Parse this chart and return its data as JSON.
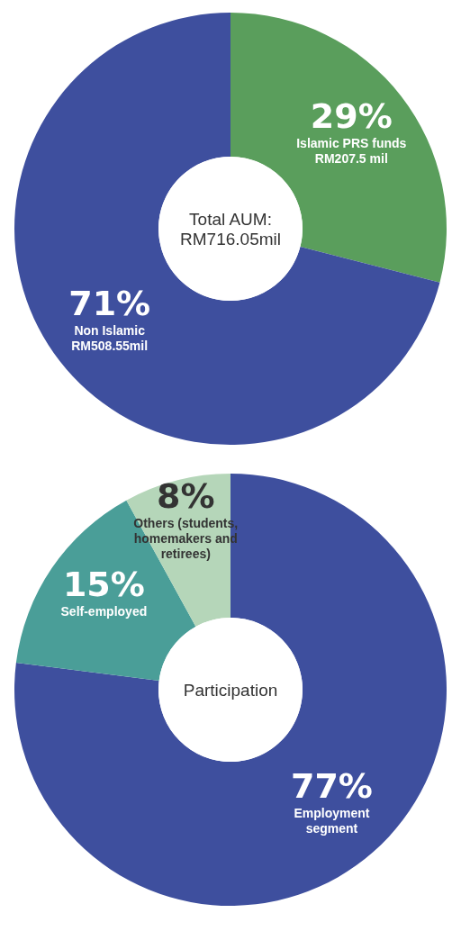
{
  "chart_data": [
    {
      "type": "donut",
      "title": "Total AUM: RM716.05mil",
      "categories": [
        "Islamic PRS funds RM207.5 mil",
        "Non Islamic RM508.55mil"
      ],
      "values": [
        29,
        71
      ],
      "colors": [
        "#5a9e5c",
        "#3e4f9e"
      ],
      "value_labels": [
        "29%",
        "71%"
      ]
    },
    {
      "type": "donut",
      "title": "Participation",
      "categories": [
        "Employment segment",
        "Self-employed",
        "Others (students, homemakers and retirees)"
      ],
      "values": [
        77,
        15,
        8
      ],
      "colors": [
        "#3e4f9e",
        "#4a9e98",
        "#b5d6b9"
      ],
      "value_labels": [
        "77%",
        "15%",
        "8%"
      ]
    }
  ]
}
